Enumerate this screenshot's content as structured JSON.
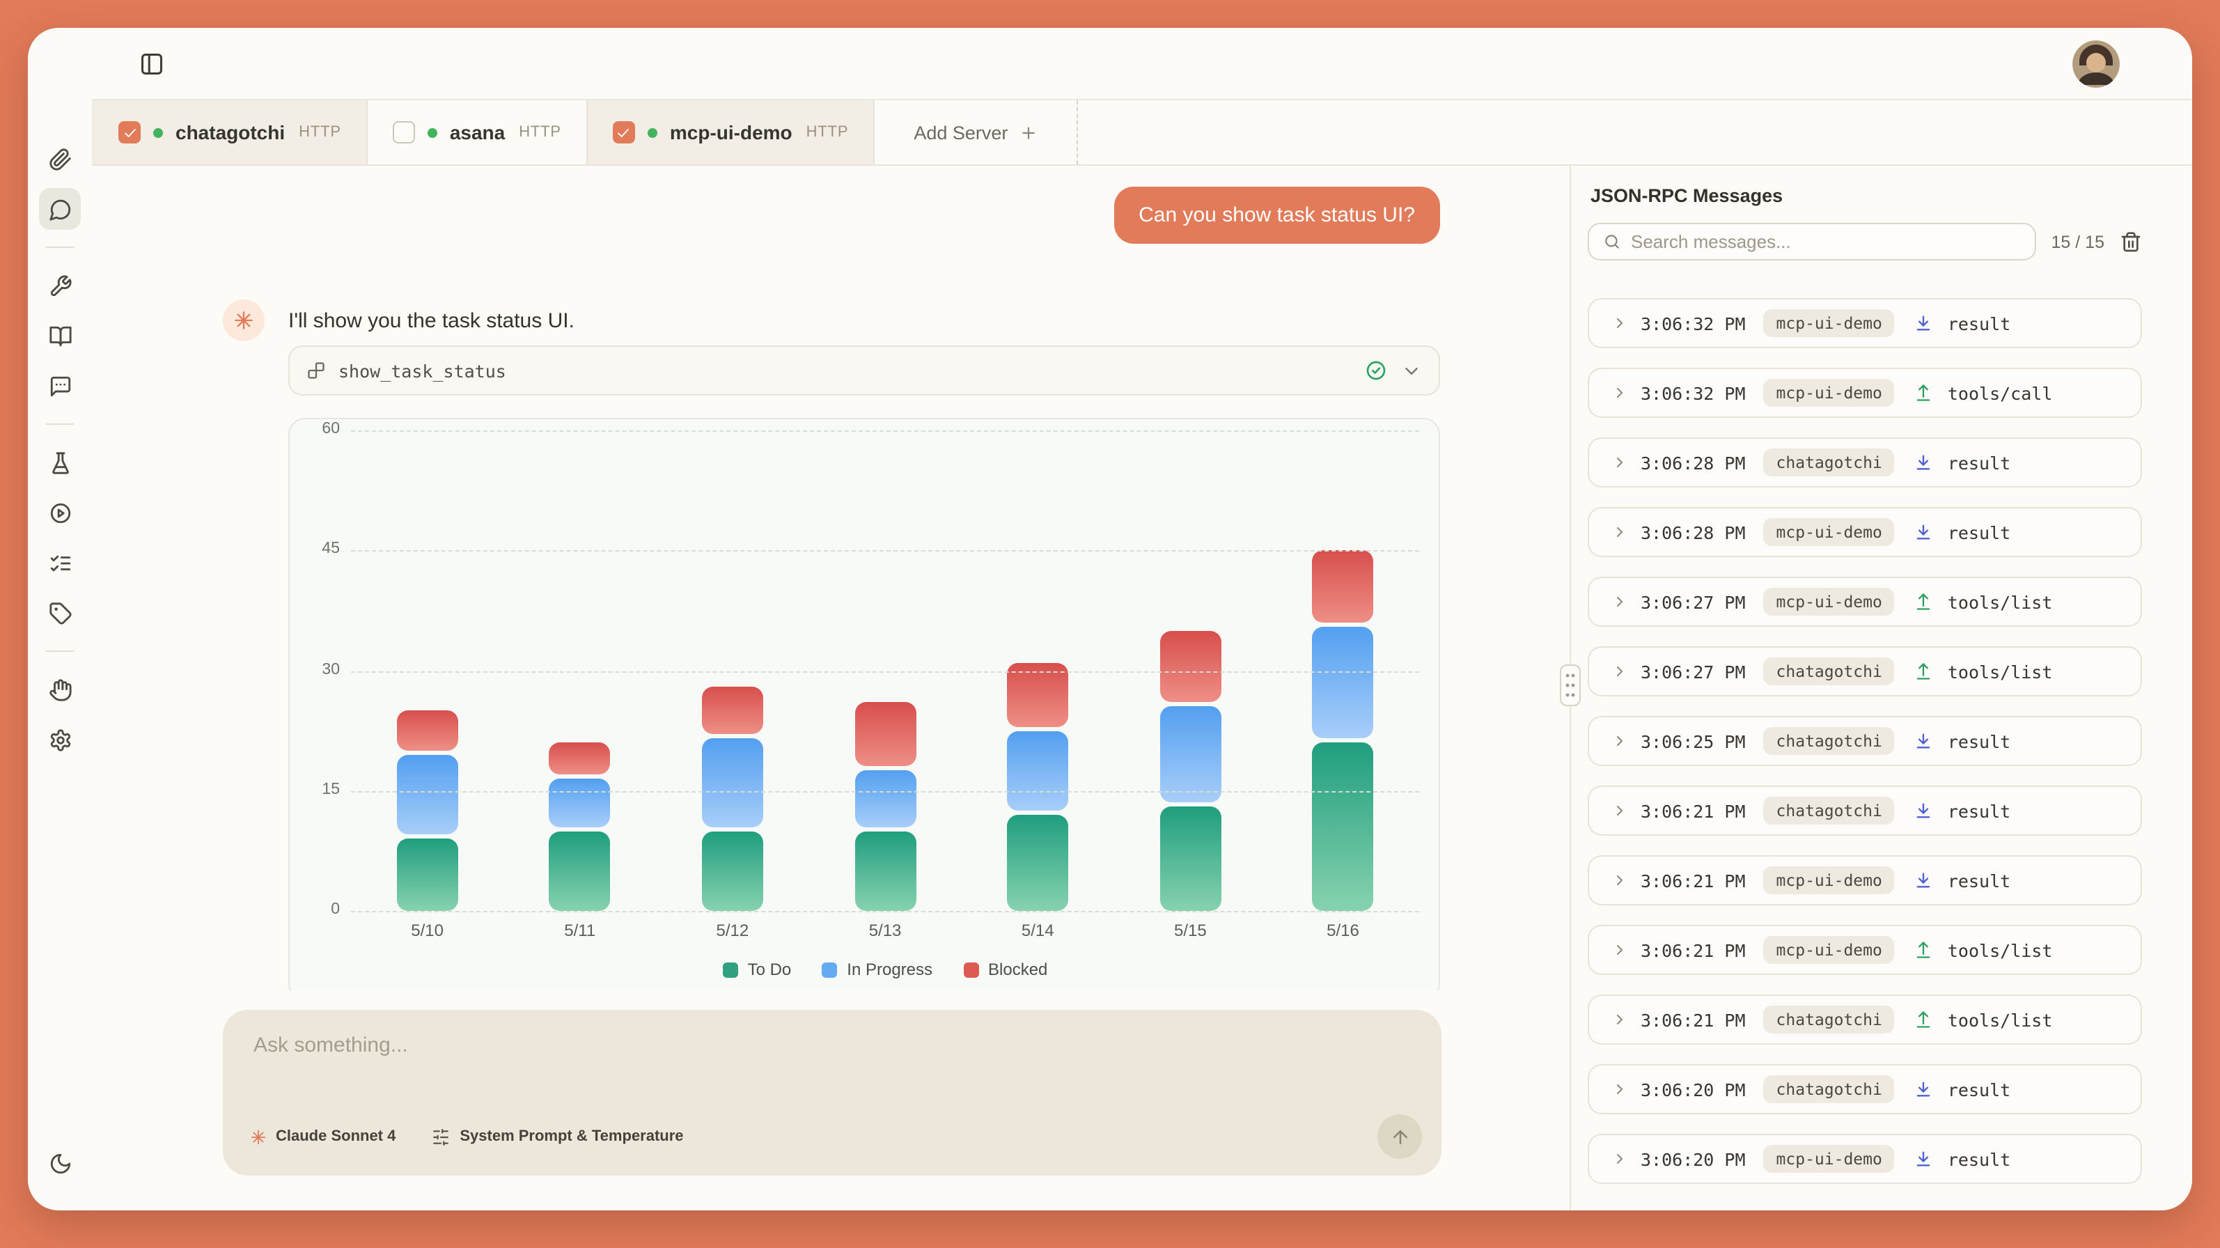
{
  "colors": {
    "accent": "#e17b59",
    "frame": "#e17b59",
    "status_green": "#43b45e",
    "arrow_down": "#4e61d4",
    "arrow_up": "#2f9e5f"
  },
  "sidebar": {
    "items": [
      {
        "icon": "paperclip"
      },
      {
        "icon": "chat-bubble",
        "active": true
      },
      {
        "divider": true
      },
      {
        "icon": "wrench"
      },
      {
        "icon": "book-open"
      },
      {
        "icon": "message-square"
      },
      {
        "divider": true
      },
      {
        "icon": "flask"
      },
      {
        "icon": "play-circle"
      },
      {
        "icon": "list-checks"
      },
      {
        "icon": "tag"
      },
      {
        "divider": true
      },
      {
        "icon": "hand"
      },
      {
        "icon": "gear"
      },
      {
        "icon": "moon",
        "bottom": true
      }
    ]
  },
  "server_tabs": {
    "tabs": [
      {
        "name": "chatagotchi",
        "protocol": "HTTP",
        "checked": true,
        "status": "connected"
      },
      {
        "name": "asana",
        "protocol": "HTTP",
        "checked": false,
        "status": "connected"
      },
      {
        "name": "mcp-ui-demo",
        "protocol": "HTTP",
        "checked": true,
        "status": "connected"
      }
    ],
    "add_label": "Add Server"
  },
  "chat": {
    "user_message": "Can you show task status UI?",
    "assistant_message": "I'll show you the task status UI.",
    "tool_call": {
      "name": "show_task_status",
      "status": "success"
    }
  },
  "chart_data": {
    "type": "bar",
    "stacked": true,
    "categories": [
      "5/10",
      "5/11",
      "5/12",
      "5/13",
      "5/14",
      "5/15",
      "5/16"
    ],
    "series": [
      {
        "name": "To Do",
        "color": "#2fa181",
        "values": [
          9,
          10,
          10,
          10,
          12,
          13,
          21
        ]
      },
      {
        "name": "In Progress",
        "color": "#64abf1",
        "values": [
          10,
          6,
          11,
          7,
          10,
          12,
          14
        ]
      },
      {
        "name": "Blocked",
        "color": "#dd5a52",
        "values": [
          5,
          4,
          6,
          8,
          8,
          9,
          9
        ]
      }
    ],
    "ylim": [
      0,
      60
    ],
    "yticks": [
      0,
      15,
      30,
      45,
      60
    ],
    "grid": "dashed",
    "legend_position": "bottom"
  },
  "composer": {
    "placeholder": "Ask something...",
    "model": "Claude Sonnet 4",
    "settings_label": "System Prompt & Temperature"
  },
  "rpc": {
    "title": "JSON-RPC Messages",
    "search_placeholder": "Search messages...",
    "count": "15 / 15",
    "messages": [
      {
        "time": "3:06:32 PM",
        "server": "mcp-ui-demo",
        "direction": "down",
        "method": "result"
      },
      {
        "time": "3:06:32 PM",
        "server": "mcp-ui-demo",
        "direction": "up",
        "method": "tools/call"
      },
      {
        "time": "3:06:28 PM",
        "server": "chatagotchi",
        "direction": "down",
        "method": "result"
      },
      {
        "time": "3:06:28 PM",
        "server": "mcp-ui-demo",
        "direction": "down",
        "method": "result"
      },
      {
        "time": "3:06:27 PM",
        "server": "mcp-ui-demo",
        "direction": "up",
        "method": "tools/list"
      },
      {
        "time": "3:06:27 PM",
        "server": "chatagotchi",
        "direction": "up",
        "method": "tools/list"
      },
      {
        "time": "3:06:25 PM",
        "server": "chatagotchi",
        "direction": "down",
        "method": "result"
      },
      {
        "time": "3:06:21 PM",
        "server": "chatagotchi",
        "direction": "down",
        "method": "result"
      },
      {
        "time": "3:06:21 PM",
        "server": "mcp-ui-demo",
        "direction": "down",
        "method": "result"
      },
      {
        "time": "3:06:21 PM",
        "server": "mcp-ui-demo",
        "direction": "up",
        "method": "tools/list"
      },
      {
        "time": "3:06:21 PM",
        "server": "chatagotchi",
        "direction": "up",
        "method": "tools/list"
      },
      {
        "time": "3:06:20 PM",
        "server": "chatagotchi",
        "direction": "down",
        "method": "result"
      },
      {
        "time": "3:06:20 PM",
        "server": "mcp-ui-demo",
        "direction": "down",
        "method": "result"
      }
    ]
  }
}
